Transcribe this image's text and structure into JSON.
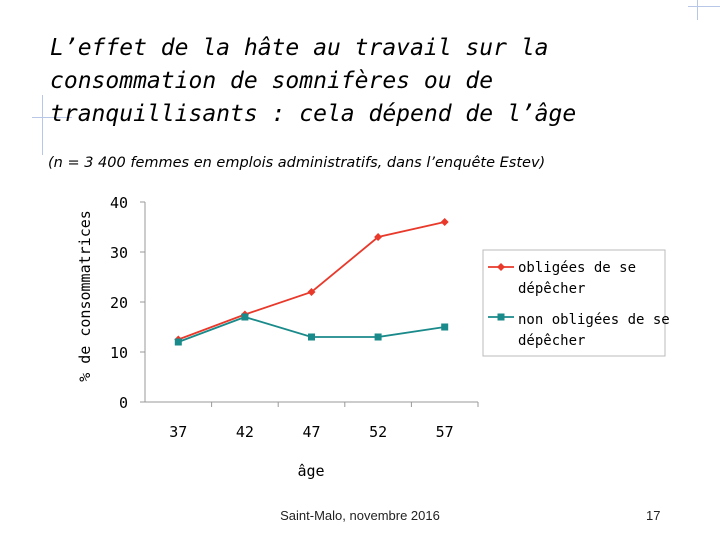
{
  "slide": {
    "title": "L’effet de la hâte au travail sur la consommation de somnifères ou de tranquillisants : cela dépend de l’âge",
    "subtitle": "(n = 3 400 femmes en emplois administratifs, dans l’enquête Estev)",
    "footer": "Saint-Malo, novembre 2016",
    "page_number": "17"
  },
  "chart_data": {
    "type": "line",
    "title": "",
    "xlabel": "âge",
    "ylabel": "% de consommatrices",
    "categories": [
      "37",
      "42",
      "47",
      "52",
      "57"
    ],
    "ylim": [
      0,
      40
    ],
    "yticks": [
      0,
      10,
      20,
      30,
      40
    ],
    "grid": false,
    "legend_position": "right",
    "series": [
      {
        "name": "obligées de se dépêcher",
        "values": [
          12.5,
          17.5,
          22,
          33,
          36
        ],
        "color": "#e8392b",
        "marker": "diamond"
      },
      {
        "name": "non obligées de se dépêcher",
        "values": [
          12,
          17,
          13,
          13,
          15
        ],
        "color": "#1a8a8a",
        "marker": "square"
      }
    ]
  }
}
